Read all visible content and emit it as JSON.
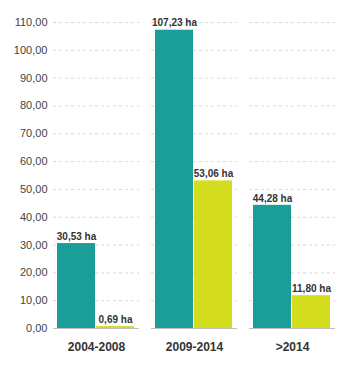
{
  "chart_data": {
    "type": "bar",
    "categories": [
      "2004-2008",
      "2009-2014",
      ">2014"
    ],
    "series": [
      {
        "color": "#1b9e97",
        "values": [
          30.53,
          107.23,
          44.28
        ],
        "value_labels": [
          "30,53 ha",
          "107,23 ha",
          "44,28 ha"
        ]
      },
      {
        "color": "#d4dc1e",
        "values": [
          0.69,
          53.06,
          11.8
        ],
        "value_labels": [
          "0,69 ha",
          "53,06 ha",
          "11,80 ha"
        ]
      }
    ],
    "ylim": [
      0,
      110
    ],
    "yticks": [
      {
        "value": 0,
        "label": "0,00"
      },
      {
        "value": 10,
        "label": "10,00"
      },
      {
        "value": 20,
        "label": "20,00"
      },
      {
        "value": 30,
        "label": "30,00"
      },
      {
        "value": 40,
        "label": "40,00"
      },
      {
        "value": 50,
        "label": "50,00"
      },
      {
        "value": 60,
        "label": "60,00"
      },
      {
        "value": 70,
        "label": "70,00"
      },
      {
        "value": 80,
        "label": "80,00"
      },
      {
        "value": 90,
        "label": "90,00"
      },
      {
        "value": 100,
        "label": "100,00"
      },
      {
        "value": 110,
        "label": "110,00"
      }
    ],
    "grid": true,
    "data_labels": true
  }
}
